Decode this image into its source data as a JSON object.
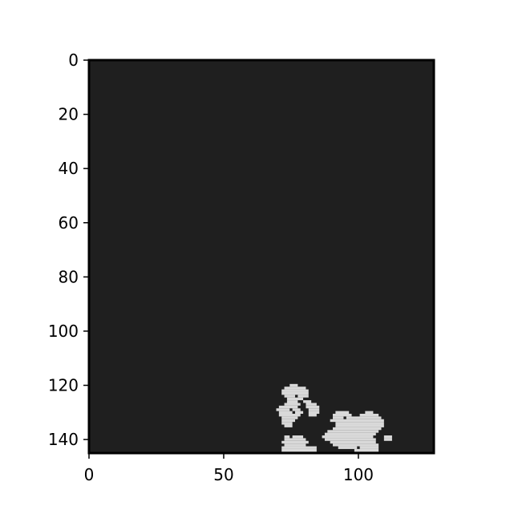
{
  "chart_data": {
    "type": "heatmap",
    "title": "",
    "xlabel": "",
    "ylabel": "",
    "xlim": [
      0,
      128
    ],
    "ylim": [
      145,
      0
    ],
    "grid": false,
    "colors": {
      "background": "#1f1f1f",
      "foreground": "#d9d9d9"
    },
    "x_ticks": [
      {
        "value": 0,
        "label": "0"
      },
      {
        "value": 50,
        "label": "50"
      },
      {
        "value": 100,
        "label": "100"
      }
    ],
    "y_ticks": [
      {
        "value": 0,
        "label": "0"
      },
      {
        "value": 20,
        "label": "20"
      },
      {
        "value": 40,
        "label": "40"
      },
      {
        "value": 60,
        "label": "60"
      },
      {
        "value": 80,
        "label": "80"
      },
      {
        "value": 100,
        "label": "100"
      },
      {
        "value": 120,
        "label": "120"
      },
      {
        "value": 140,
        "label": "140"
      }
    ],
    "foreground_blobs": [
      {
        "name": "left-blob",
        "rows": [
          {
            "y": 120,
            "x": [
              75,
              77
            ]
          },
          {
            "y": 121,
            "x": [
              73,
              80
            ]
          },
          {
            "y": 122,
            "x": [
              72,
              81
            ]
          },
          {
            "y": 123,
            "x": [
              72,
              81
            ]
          },
          {
            "y": 124,
            "x": [
              73,
              76
            ]
          },
          {
            "y": 124,
            "x": [
              78,
              81
            ]
          },
          {
            "y": 125,
            "x": [
              74,
              79
            ]
          },
          {
            "y": 126,
            "x": [
              74,
              77
            ]
          },
          {
            "y": 126,
            "x": [
              80,
              82
            ]
          },
          {
            "y": 127,
            "x": [
              73,
              78
            ]
          },
          {
            "y": 127,
            "x": [
              81,
              84
            ]
          },
          {
            "y": 128,
            "x": [
              71,
              77
            ]
          },
          {
            "y": 128,
            "x": [
              81,
              85
            ]
          },
          {
            "y": 129,
            "x": [
              70,
              74
            ]
          },
          {
            "y": 129,
            "x": [
              76,
              78
            ]
          },
          {
            "y": 129,
            "x": [
              82,
              85
            ]
          },
          {
            "y": 130,
            "x": [
              71,
              75
            ]
          },
          {
            "y": 130,
            "x": [
              77,
              79
            ]
          },
          {
            "y": 130,
            "x": [
              82,
              85
            ]
          },
          {
            "y": 131,
            "x": [
              71,
              78
            ]
          },
          {
            "y": 131,
            "x": [
              82,
              84
            ]
          },
          {
            "y": 132,
            "x": [
              72,
              77
            ]
          },
          {
            "y": 133,
            "x": [
              72,
              76
            ]
          },
          {
            "y": 134,
            "x": [
              72,
              75
            ]
          },
          {
            "y": 135,
            "x": [
              73,
              75
            ]
          },
          {
            "y": 139,
            "x": [
              73,
              74
            ]
          },
          {
            "y": 139,
            "x": [
              76,
              79
            ]
          },
          {
            "y": 140,
            "x": [
              73,
              80
            ]
          },
          {
            "y": 141,
            "x": [
              72,
              81
            ]
          },
          {
            "y": 142,
            "x": [
              73,
              80
            ]
          },
          {
            "y": 143,
            "x": [
              72,
              84
            ]
          },
          {
            "y": 144,
            "x": [
              72,
              84
            ]
          }
        ]
      },
      {
        "name": "right-blob",
        "rows": [
          {
            "y": 130,
            "x": [
              92,
              96
            ]
          },
          {
            "y": 130,
            "x": [
              103,
              105
            ]
          },
          {
            "y": 131,
            "x": [
              91,
              97
            ]
          },
          {
            "y": 131,
            "x": [
              101,
              107
            ]
          },
          {
            "y": 132,
            "x": [
              91,
              94
            ]
          },
          {
            "y": 132,
            "x": [
              96,
              108
            ]
          },
          {
            "y": 133,
            "x": [
              90,
              109
            ]
          },
          {
            "y": 134,
            "x": [
              92,
              109
            ]
          },
          {
            "y": 135,
            "x": [
              92,
              109
            ]
          },
          {
            "y": 136,
            "x": [
              91,
              108
            ]
          },
          {
            "y": 137,
            "x": [
              89,
              107
            ]
          },
          {
            "y": 138,
            "x": [
              88,
              106
            ]
          },
          {
            "y": 139,
            "x": [
              87,
              105
            ]
          },
          {
            "y": 139,
            "x": [
              110,
              112
            ]
          },
          {
            "y": 140,
            "x": [
              88,
              106
            ]
          },
          {
            "y": 140,
            "x": [
              110,
              112
            ]
          },
          {
            "y": 141,
            "x": [
              90,
              106
            ]
          },
          {
            "y": 142,
            "x": [
              91,
              107
            ]
          },
          {
            "y": 143,
            "x": [
              93,
              99
            ]
          },
          {
            "y": 143,
            "x": [
              101,
              107
            ]
          },
          {
            "y": 144,
            "x": [
              99,
              107
            ]
          }
        ]
      }
    ]
  }
}
